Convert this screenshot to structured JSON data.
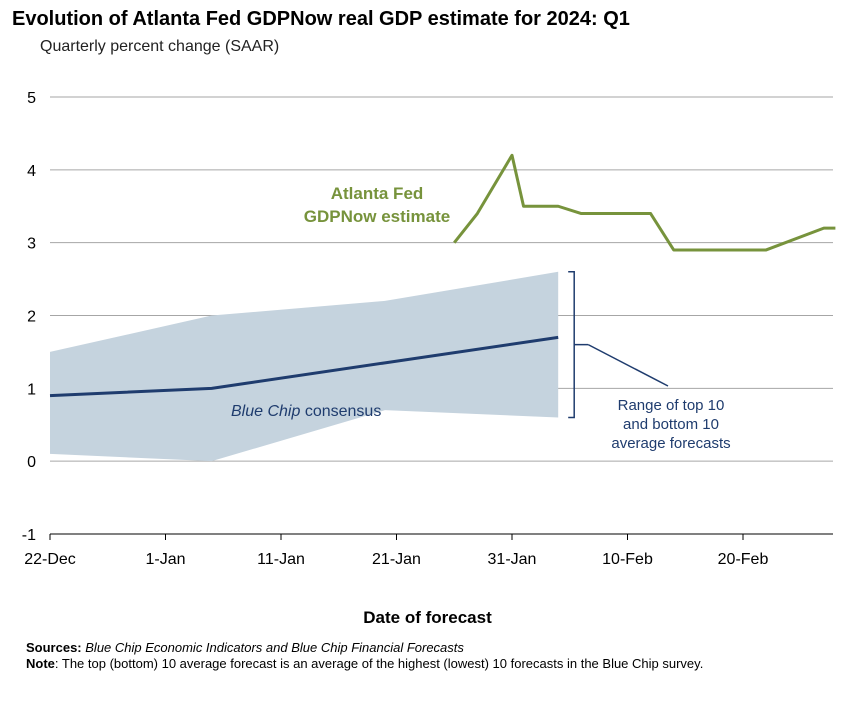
{
  "title": "Evolution of Atlanta Fed GDPNow real GDP estimate for 2024: Q1",
  "subtitle": "Quarterly percent change (SAAR)",
  "colors": {
    "gdpnow": "#77933c",
    "consensus": "#1f3c6e",
    "band": "#c5d3de",
    "grid": "#a6a6a6",
    "annotation": "#1f3c6e"
  },
  "chart_data": {
    "type": "line",
    "xlabel": "Date of forecast",
    "ylabel": "",
    "ylim": [
      -1,
      5
    ],
    "yticks": [
      "-1",
      "0",
      "1",
      "2",
      "3",
      "4",
      "5"
    ],
    "x_tick_labels": [
      "22-Dec",
      "1-Jan",
      "11-Jan",
      "21-Jan",
      "31-Jan",
      "10-Feb",
      "20-Feb"
    ],
    "grid": true,
    "series": [
      {
        "name": "Atlanta Fed GDPNow estimate",
        "x": [
          "2024-01-26",
          "2024-01-28",
          "2024-01-31",
          "2024-02-01",
          "2024-02-02",
          "2024-02-04",
          "2024-02-06",
          "2024-02-08",
          "2024-02-12",
          "2024-02-14",
          "2024-02-18",
          "2024-02-22",
          "2024-02-27",
          "2024-02-28"
        ],
        "values": [
          3.0,
          3.4,
          4.2,
          3.5,
          3.5,
          3.5,
          3.4,
          3.4,
          3.4,
          2.9,
          2.9,
          2.9,
          3.2,
          3.2
        ]
      },
      {
        "name": "Blue Chip consensus",
        "x": [
          "2023-12-22",
          "2024-01-05",
          "2024-01-20",
          "2024-02-04"
        ],
        "values": [
          0.9,
          1.0,
          1.35,
          1.7
        ]
      },
      {
        "name": "Range of top 10 and bottom 10 average forecasts",
        "x": [
          "2023-12-22",
          "2024-01-05",
          "2024-01-20",
          "2024-02-04"
        ],
        "upper": [
          1.5,
          2.0,
          2.2,
          2.6
        ],
        "lower": [
          0.1,
          0.0,
          0.7,
          0.6
        ]
      }
    ],
    "annotations": {
      "gdpnow_line1": "Atlanta Fed",
      "gdpnow_line2": "GDPNow estimate",
      "consensus_italic": "Blue Chip",
      "consensus_rest": " consensus",
      "range_line1": "Range of top 10",
      "range_line2": "and bottom 10",
      "range_line3": "average forecasts"
    }
  },
  "notes": {
    "sources_label": "Sources:",
    "sources_text": "Blue Chip Economic Indicators and Blue Chip Financial Forecasts",
    "note_label": "Note",
    "note_text": ": The top (bottom) 10 average forecast is an average of the highest (lowest) 10 forecasts in the Blue Chip survey."
  }
}
